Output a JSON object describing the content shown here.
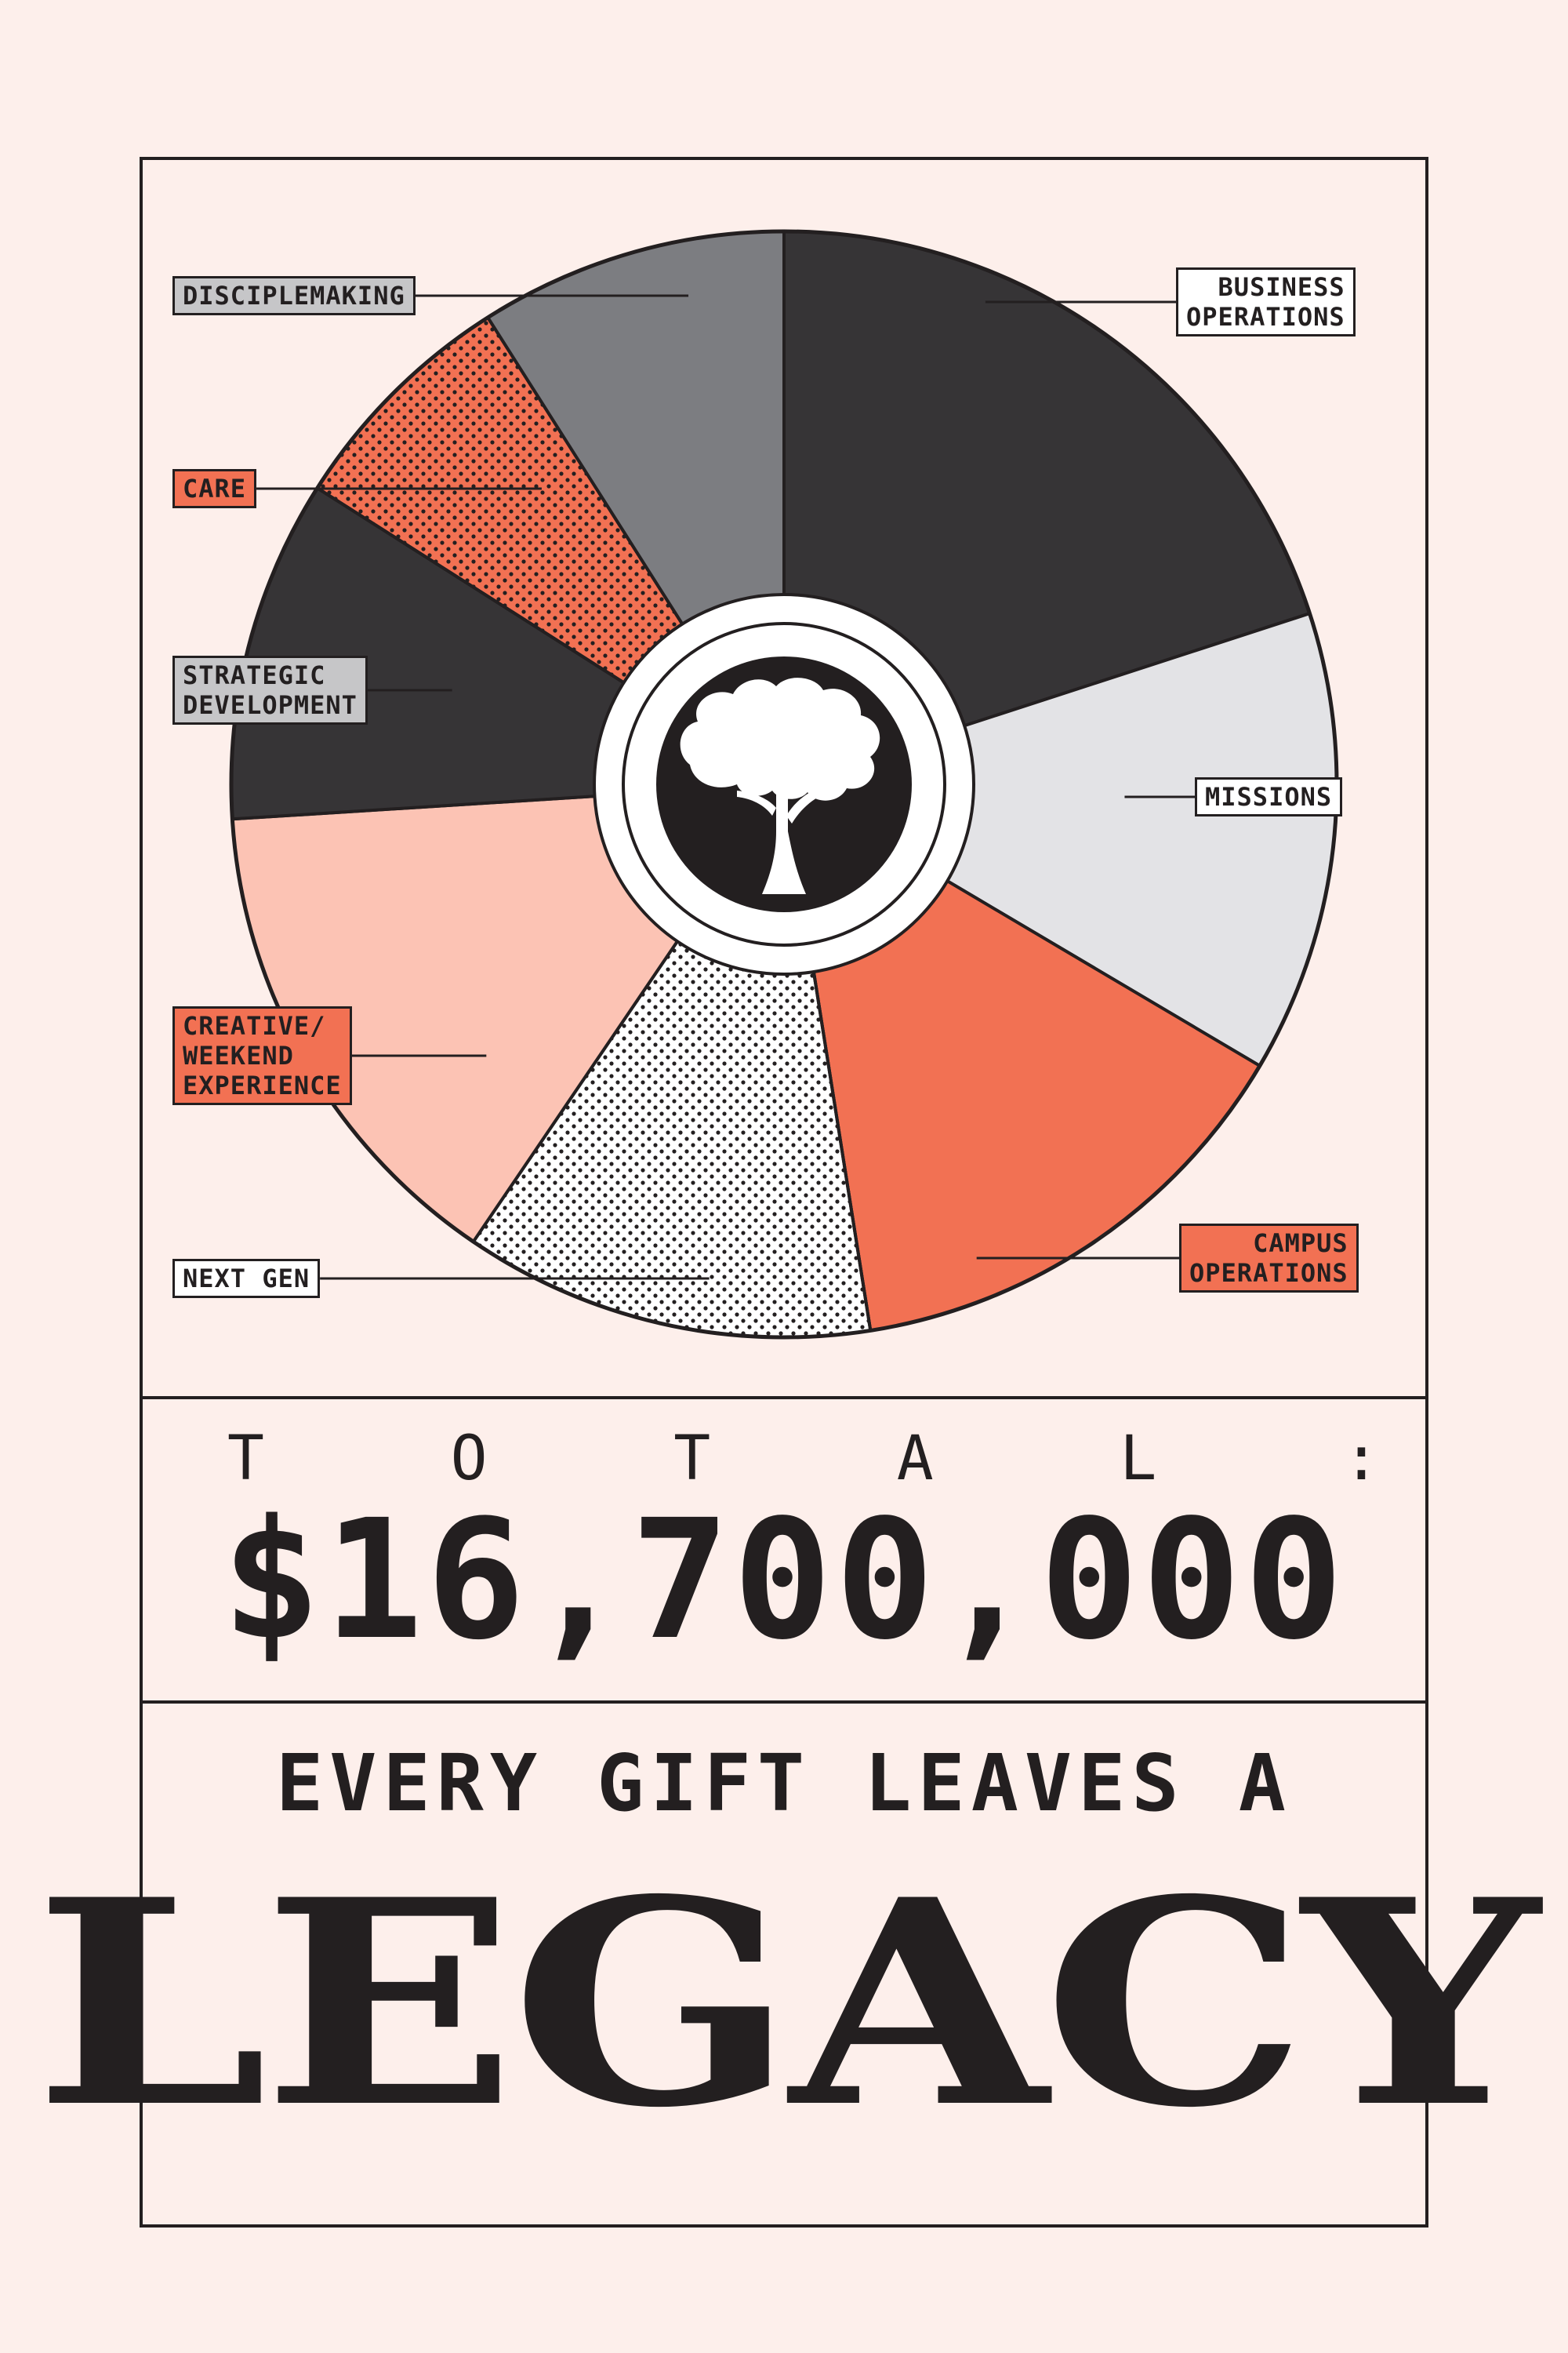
{
  "chart_data": {
    "type": "pie",
    "slices": [
      {
        "label": "BUSINESS\nOPERATIONS",
        "value": 20,
        "color": "#363436",
        "pattern": "solid"
      },
      {
        "label": "MISSIONS",
        "value": 13.5,
        "color": "#e3e3e6",
        "pattern": "solid"
      },
      {
        "label": "CAMPUS\nOPERATIONS",
        "value": 14,
        "color": "#f27153",
        "pattern": "solid"
      },
      {
        "label": "NEXT GEN",
        "value": 12,
        "color": "#ffffff",
        "pattern": "dots"
      },
      {
        "label": "CREATIVE/\nWEEKEND\nEXPERIENCE",
        "value": 14.5,
        "color": "#fcc3b4",
        "pattern": "solid"
      },
      {
        "label": "STRATEGIC\nDEVELOPMENT",
        "value": 10,
        "color": "#363436",
        "pattern": "solid"
      },
      {
        "label": "CARE",
        "value": 7,
        "color": "#f27153",
        "pattern": "dots"
      },
      {
        "label": "DISCIPLEMAKING",
        "value": 9,
        "color": "#7c7d81",
        "pattern": "solid"
      }
    ]
  },
  "callouts": {
    "business_operations": {
      "text": "BUSINESS\nOPERATIONS",
      "bg": "#ffffff"
    },
    "missions": {
      "text": "MISSIONS",
      "bg": "#ffffff"
    },
    "campus_operations": {
      "text": "CAMPUS\nOPERATIONS",
      "bg": "#f27153"
    },
    "next_gen": {
      "text": "NEXT GEN",
      "bg": "#ffffff"
    },
    "creative": {
      "text": "CREATIVE/\nWEEKEND\nEXPERIENCE",
      "bg": "#f27153"
    },
    "strategic": {
      "text": "STRATEGIC\nDEVELOPMENT",
      "bg": "#c6c6c8"
    },
    "care": {
      "text": "CARE",
      "bg": "#f27153"
    },
    "disciplemaking": {
      "text": "DISCIPLEMAKING",
      "bg": "#c6c6c8"
    }
  },
  "center_icon": "tree-icon",
  "total": {
    "label_chars": [
      "T",
      "O",
      "T",
      "A",
      "L",
      ":"
    ],
    "value": "$16,700,000"
  },
  "tagline": "EVERY GIFT LEAVES A",
  "headline": "LEGACY"
}
